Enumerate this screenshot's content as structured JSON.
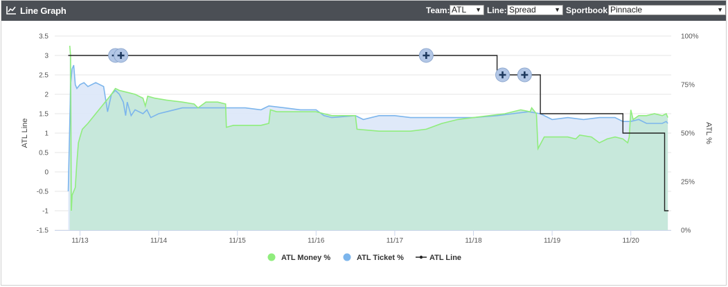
{
  "header": {
    "title": "Line Graph",
    "title_icon": "line-chart-icon",
    "team_label": "Team:",
    "team_value": "ATL",
    "line_label": "Line:",
    "line_value": "Spread",
    "sportsbook_label": "Sportbook:",
    "sportsbook_value": "Pinnacle",
    "dropdown_icon": "caret-down-icon"
  },
  "colors": {
    "money": "#90ed7d",
    "money_fill": "#c5e8d9",
    "ticket": "#7cb5ec",
    "ticket_fill": "#dbe7f8",
    "line": "#222222",
    "grid": "#e6e6e6",
    "marker": "#b3c7e6",
    "marker_cross": "#1f3a5f"
  },
  "chart_data": {
    "type": "line",
    "ylabel": "ATL Line",
    "y2label": "ATL %",
    "ylim": [
      -1.5,
      3.5
    ],
    "yticks": [
      "3.5",
      "3",
      "2.5",
      "2",
      "1.5",
      "1",
      "0.5",
      "0",
      "-0.5",
      "-1",
      "-1.5"
    ],
    "y2lim": [
      0,
      100
    ],
    "y2ticks": [
      "100%",
      "75%",
      "50%",
      "25%",
      "0%"
    ],
    "xlim": [
      12.85,
      20.55
    ],
    "xticks": [
      "11/13",
      "11/14",
      "11/15",
      "11/16",
      "11/17",
      "11/18",
      "11/19",
      "11/20"
    ],
    "grid": true,
    "legend_position": "bottom-center",
    "legend": [
      "ATL Money %",
      "ATL Ticket %",
      "ATL Line"
    ],
    "series": [
      {
        "name": "ATL Money %",
        "axis": "right",
        "points": [
          [
            12.87,
            95
          ],
          [
            12.88,
            90
          ],
          [
            12.89,
            10
          ],
          [
            12.9,
            18
          ],
          [
            12.92,
            20
          ],
          [
            12.94,
            22
          ],
          [
            12.96,
            35
          ],
          [
            12.98,
            45
          ],
          [
            13.0,
            48
          ],
          [
            13.03,
            52
          ],
          [
            13.1,
            55
          ],
          [
            13.2,
            60
          ],
          [
            13.3,
            65
          ],
          [
            13.4,
            70
          ],
          [
            13.45,
            73
          ],
          [
            13.5,
            72
          ],
          [
            13.6,
            71
          ],
          [
            13.7,
            70
          ],
          [
            13.8,
            68
          ],
          [
            13.83,
            64
          ],
          [
            13.86,
            69
          ],
          [
            13.95,
            68
          ],
          [
            14.1,
            67
          ],
          [
            14.3,
            66
          ],
          [
            14.45,
            65
          ],
          [
            14.5,
            63
          ],
          [
            14.6,
            66
          ],
          [
            14.75,
            66
          ],
          [
            14.85,
            65
          ],
          [
            14.86,
            53
          ],
          [
            14.95,
            54
          ],
          [
            15.2,
            54
          ],
          [
            15.3,
            54
          ],
          [
            15.4,
            55
          ],
          [
            15.42,
            62
          ],
          [
            15.5,
            61
          ],
          [
            15.8,
            61
          ],
          [
            16.0,
            61
          ],
          [
            16.1,
            60
          ],
          [
            16.2,
            59
          ],
          [
            16.5,
            59
          ],
          [
            16.52,
            52
          ],
          [
            16.8,
            51
          ],
          [
            17.0,
            51
          ],
          [
            17.2,
            51
          ],
          [
            17.4,
            52
          ],
          [
            17.6,
            55
          ],
          [
            17.8,
            57
          ],
          [
            18.0,
            58
          ],
          [
            18.2,
            59
          ],
          [
            18.4,
            60
          ],
          [
            18.6,
            62
          ],
          [
            18.72,
            61
          ],
          [
            18.74,
            63
          ],
          [
            18.8,
            60
          ],
          [
            18.82,
            42
          ],
          [
            18.9,
            48
          ],
          [
            19.0,
            48
          ],
          [
            19.2,
            48
          ],
          [
            19.3,
            47
          ],
          [
            19.35,
            49
          ],
          [
            19.5,
            48
          ],
          [
            19.6,
            45
          ],
          [
            19.7,
            47
          ],
          [
            19.8,
            48
          ],
          [
            19.9,
            47
          ],
          [
            19.96,
            45
          ],
          [
            19.98,
            48
          ],
          [
            20.0,
            62
          ],
          [
            20.03,
            57
          ],
          [
            20.1,
            59
          ],
          [
            20.2,
            59
          ],
          [
            20.3,
            60
          ],
          [
            20.4,
            59
          ],
          [
            20.45,
            60
          ],
          [
            20.47,
            58
          ]
        ]
      },
      {
        "name": "ATL Ticket %",
        "axis": "right",
        "points": [
          [
            12.85,
            20
          ],
          [
            12.87,
            55
          ],
          [
            12.88,
            75
          ],
          [
            12.9,
            83
          ],
          [
            12.92,
            85
          ],
          [
            12.94,
            75
          ],
          [
            12.96,
            73
          ],
          [
            13.0,
            75
          ],
          [
            13.05,
            76
          ],
          [
            13.1,
            74
          ],
          [
            13.2,
            76
          ],
          [
            13.3,
            74
          ],
          [
            13.35,
            61
          ],
          [
            13.4,
            70
          ],
          [
            13.45,
            72
          ],
          [
            13.5,
            70
          ],
          [
            13.55,
            66
          ],
          [
            13.58,
            59
          ],
          [
            13.6,
            66
          ],
          [
            13.65,
            59
          ],
          [
            13.7,
            62
          ],
          [
            13.8,
            60
          ],
          [
            13.85,
            62
          ],
          [
            13.9,
            58
          ],
          [
            14.0,
            60
          ],
          [
            14.1,
            61
          ],
          [
            14.3,
            63
          ],
          [
            14.5,
            63
          ],
          [
            14.7,
            63
          ],
          [
            15.0,
            63
          ],
          [
            15.1,
            63
          ],
          [
            15.3,
            62
          ],
          [
            15.4,
            64
          ],
          [
            15.6,
            63
          ],
          [
            15.8,
            62
          ],
          [
            16.0,
            62
          ],
          [
            16.1,
            59
          ],
          [
            16.2,
            58
          ],
          [
            16.5,
            59
          ],
          [
            16.6,
            57
          ],
          [
            16.8,
            59
          ],
          [
            17.0,
            59
          ],
          [
            17.2,
            58
          ],
          [
            17.5,
            58
          ],
          [
            17.8,
            58
          ],
          [
            18.0,
            58
          ],
          [
            18.3,
            59
          ],
          [
            18.5,
            60
          ],
          [
            18.7,
            61
          ],
          [
            18.85,
            60
          ],
          [
            19.0,
            57
          ],
          [
            19.2,
            58
          ],
          [
            19.4,
            57
          ],
          [
            19.6,
            58
          ],
          [
            19.8,
            58
          ],
          [
            19.9,
            56
          ],
          [
            20.0,
            56
          ],
          [
            20.1,
            57
          ],
          [
            20.2,
            55
          ],
          [
            20.3,
            55
          ],
          [
            20.4,
            55
          ],
          [
            20.45,
            56
          ],
          [
            20.47,
            55
          ]
        ]
      },
      {
        "name": "ATL Line",
        "axis": "left",
        "step": true,
        "points": [
          [
            12.85,
            3
          ],
          [
            18.3,
            3
          ],
          [
            18.3,
            2.5
          ],
          [
            18.85,
            2.5
          ],
          [
            18.85,
            1.5
          ],
          [
            19.9,
            1.5
          ],
          [
            19.9,
            1
          ],
          [
            20.43,
            1
          ],
          [
            20.43,
            -1
          ],
          [
            20.48,
            -1
          ]
        ]
      }
    ],
    "line_markers": [
      13.45,
      13.52,
      17.4,
      18.37,
      18.65
    ]
  }
}
